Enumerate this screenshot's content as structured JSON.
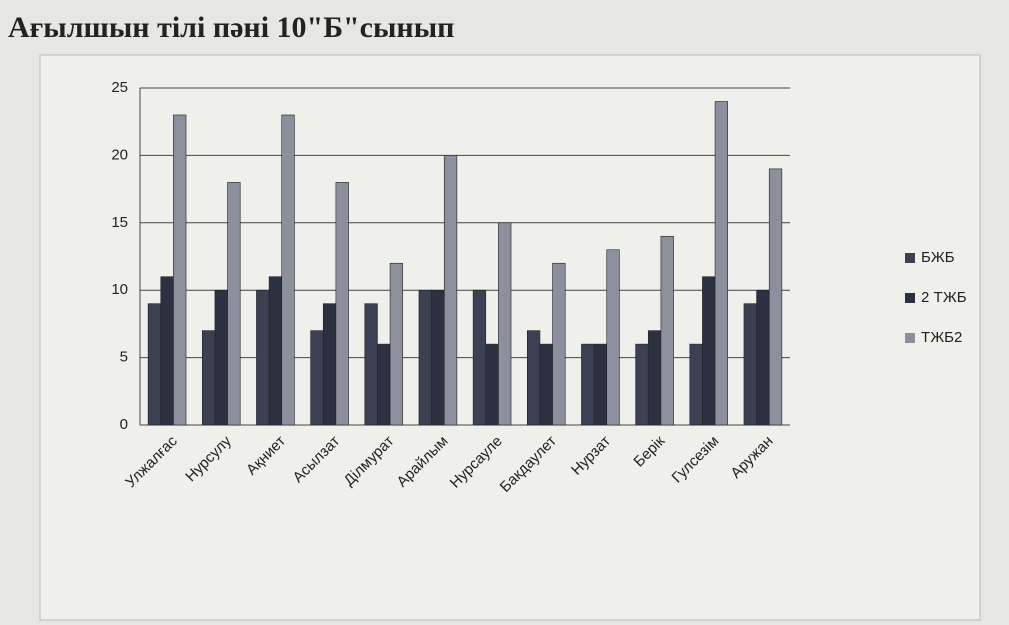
{
  "chart_data": {
    "type": "bar",
    "title": "Ағылшын тілі  пәні  10\"Б\"сынып",
    "categories": [
      "Улжалғас",
      "Нурсулу",
      "Ақниет",
      "Асылзат",
      "Ділмурат",
      "Арайлым",
      "Нурсауле",
      "Бакдаулет",
      "Нурзат",
      "Берік",
      "Гулсезім",
      "Аружан"
    ],
    "series": [
      {
        "name": "БЖБ",
        "color": "#3b4052",
        "values": [
          9,
          7,
          10,
          7,
          9,
          10,
          10,
          7,
          6,
          6,
          6,
          9
        ]
      },
      {
        "name": "2 ТЖБ",
        "color": "#2c3142",
        "values": [
          11,
          10,
          11,
          9,
          6,
          10,
          6,
          6,
          6,
          7,
          11,
          10
        ]
      },
      {
        "name": "ТЖБ2",
        "color": "#8b909c",
        "values": [
          23,
          18,
          23,
          18,
          12,
          20,
          15,
          12,
          13,
          14,
          24,
          19
        ]
      }
    ],
    "ylim": [
      0,
      25
    ],
    "yticks": [
      0,
      5,
      10,
      15,
      20,
      25
    ],
    "grid": true,
    "legend": "right"
  }
}
